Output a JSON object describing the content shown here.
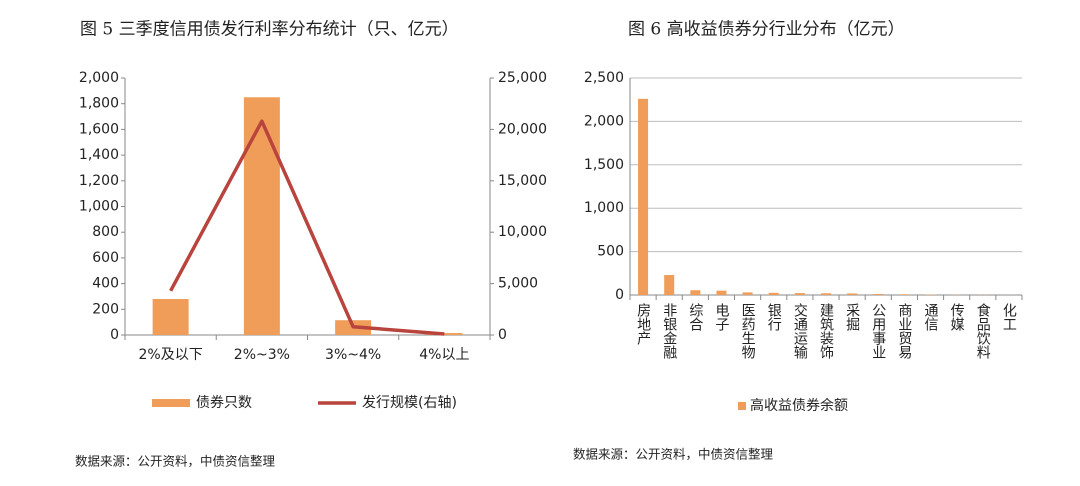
{
  "chart_data": [
    {
      "type": "combo",
      "title": "图 5 三季度信用债发行利率分布统计（只、亿元）",
      "categories": [
        "2%及以下",
        "2%~3%",
        "3%~4%",
        "4%以上"
      ],
      "series": [
        {
          "name": "债券只数",
          "type": "bar",
          "color": "#ef9d58",
          "values": [
            280,
            1850,
            115,
            15
          ]
        },
        {
          "name": "发行规模(右轴)",
          "type": "line",
          "axis": "y2",
          "color": "#b9443e",
          "values": [
            4300,
            20800,
            800,
            100
          ]
        }
      ],
      "ylim": [
        0,
        2000
      ],
      "yticks": [
        0,
        200,
        400,
        600,
        800,
        {
          "value": 1000,
          "label": "1,000"
        },
        {
          "value": 1200,
          "label": "1,200"
        },
        {
          "value": 1400,
          "label": "1,400"
        },
        {
          "value": 1600,
          "label": "1,600"
        },
        {
          "value": 1800,
          "label": "1,800"
        },
        {
          "value": 2000,
          "label": "2,000"
        }
      ],
      "y2lim": [
        0,
        25000
      ],
      "y2ticks": [
        0,
        {
          "value": 5000,
          "label": "5,000"
        },
        {
          "value": 10000,
          "label": "10,000"
        },
        {
          "value": 15000,
          "label": "15,000"
        },
        {
          "value": 20000,
          "label": "20,000"
        },
        {
          "value": 25000,
          "label": "25,000"
        }
      ],
      "grid": false,
      "source": "数据来源：公开资料，中债资信整理"
    },
    {
      "type": "bar",
      "title": "图 6 高收益债券分行业分布（亿元）",
      "categories": [
        "房地产",
        "非银金融",
        "综合",
        "电子",
        "医药生物",
        "银行",
        "交通运输",
        "建筑装饰",
        "采掘",
        "公用事业",
        "商业贸易",
        "通信",
        "传媒",
        "食品饮料",
        "化工"
      ],
      "series": [
        {
          "name": "高收益债券余额",
          "type": "bar",
          "color": "#ef9d58",
          "values": [
            2260,
            230,
            55,
            50,
            30,
            25,
            22,
            20,
            18,
            12,
            8,
            5,
            3,
            2,
            1
          ]
        }
      ],
      "ylim": [
        0,
        2500
      ],
      "yticks": [
        0,
        500,
        {
          "value": 1000,
          "label": "1,000"
        },
        {
          "value": 1500,
          "label": "1,500"
        },
        {
          "value": 2000,
          "label": "2,000"
        },
        {
          "value": 2500,
          "label": "2,500"
        }
      ],
      "grid": true,
      "source": "数据来源：公开资料，中债资信整理"
    }
  ]
}
